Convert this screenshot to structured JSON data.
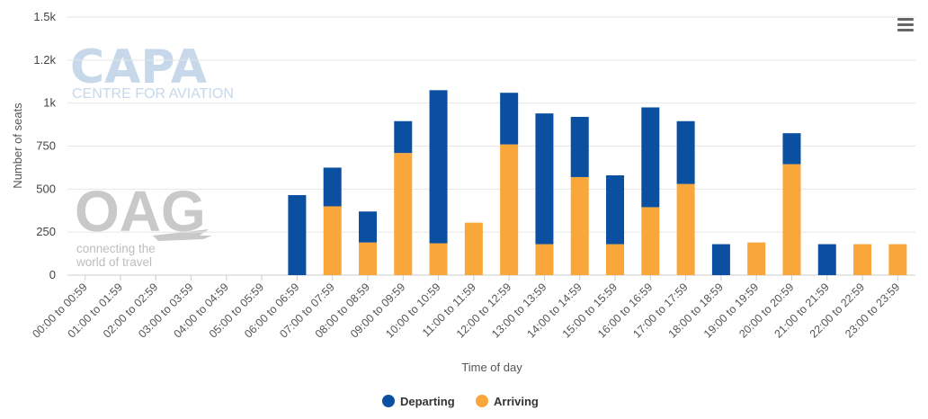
{
  "chart_data": {
    "type": "bar",
    "stacked": true,
    "xlabel": "Time of day",
    "ylabel": "Number of seats",
    "ylim": [
      0,
      1500
    ],
    "yticks": [
      0,
      250,
      500,
      750,
      1000,
      1250,
      1500
    ],
    "ytick_labels": [
      "0",
      "250",
      "500",
      "750",
      "1k",
      "1.2k",
      "1.5k"
    ],
    "grid": true,
    "legend_position": "bottom-center",
    "categories": [
      "00:00 to 00:59",
      "01:00 to 01:59",
      "02:00 to 02:59",
      "03:00 to 03:59",
      "04:00 to 04:59",
      "05:00 to 05:59",
      "06:00 to 06:59",
      "07:00 to 07:59",
      "08:00 to 08:59",
      "09:00 to 09:59",
      "10:00 to 10:59",
      "11:00 to 11:59",
      "12:00 to 12:59",
      "13:00 to 13:59",
      "14:00 to 14:59",
      "15:00 to 15:59",
      "16:00 to 16:59",
      "17:00 to 17:59",
      "18:00 to 18:59",
      "19:00 to 19:59",
      "20:00 to 20:59",
      "21:00 to 21:59",
      "22:00 to 22:59",
      "23:00 to 23:59"
    ],
    "series": [
      {
        "name": "Departing",
        "color": "#0b4fa0",
        "values": [
          0,
          0,
          0,
          0,
          0,
          0,
          465,
          225,
          180,
          185,
          890,
          0,
          300,
          760,
          350,
          400,
          580,
          365,
          180,
          0,
          180,
          180,
          0,
          0
        ]
      },
      {
        "name": "Arriving",
        "color": "#f9a73a",
        "values": [
          0,
          0,
          0,
          0,
          0,
          0,
          0,
          400,
          190,
          710,
          185,
          305,
          760,
          180,
          570,
          180,
          395,
          530,
          0,
          190,
          645,
          0,
          180,
          180
        ]
      }
    ]
  },
  "watermarks": {
    "capa_logo": "CAPA",
    "capa_subtitle": "CENTRE FOR AVIATION",
    "oag_logo": "OAG",
    "oag_tagline_1": "connecting the",
    "oag_tagline_2": "world of travel"
  },
  "menu": {
    "icon": "hamburger-menu-icon"
  }
}
